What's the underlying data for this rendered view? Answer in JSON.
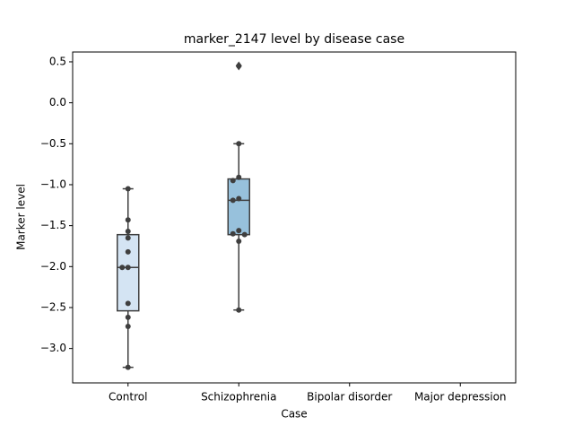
{
  "chart_data": {
    "type": "box",
    "title": "marker_2147 level by disease case",
    "x_label": "Case",
    "y_label": "Marker level",
    "categories": [
      "Control",
      "Schizophrenia",
      "Bipolar disorder",
      "Major depression"
    ],
    "boxes": [
      {
        "whisker_low": -3.23,
        "q1": -2.54,
        "median": -2.01,
        "q3": -1.61,
        "whisker_high": -1.05,
        "color": "#d4e4f3",
        "points": [
          -1.05,
          -1.43,
          -1.57,
          -1.65,
          -1.82,
          -2.01,
          -2.01,
          -2.45,
          -2.62,
          -2.73,
          -3.23
        ],
        "outliers": []
      },
      {
        "whisker_low": -2.53,
        "q1": -1.61,
        "median": -1.19,
        "q3": -0.93,
        "whisker_high": -0.5,
        "color": "#97c1dc",
        "points": [
          0.45,
          -0.5,
          -0.91,
          -0.95,
          -1.17,
          -1.19,
          -1.56,
          -1.6,
          -1.61,
          -1.69,
          -2.53
        ],
        "outliers": [
          0.45
        ]
      },
      null,
      null
    ],
    "ylim": [
      -3.42,
      0.62
    ],
    "yticks": [
      0.5,
      {
        "value": 0,
        "label": "0.0"
      },
      {
        "value": -0.5,
        "label": "−0.5"
      },
      {
        "value": -1,
        "label": "−1.0"
      },
      {
        "value": -1.5,
        "label": "−1.5"
      },
      {
        "value": -2,
        "label": "−2.0"
      },
      {
        "value": -2.5,
        "label": "−2.5"
      },
      {
        "value": -3,
        "label": "−3.0"
      }
    ]
  }
}
